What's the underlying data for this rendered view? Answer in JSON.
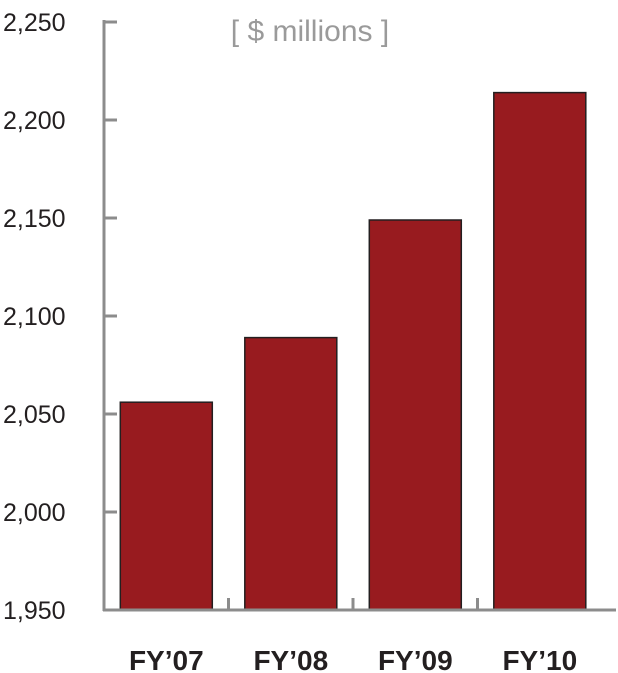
{
  "chart_data": {
    "type": "bar",
    "title": "",
    "unit_label": "[ $ millions ]",
    "categories": [
      "FY’07",
      "FY’08",
      "FY’09",
      "FY’10"
    ],
    "values": [
      2056,
      2089,
      2149,
      2214
    ],
    "ylim": [
      1950,
      2250
    ],
    "yticks": [
      1950,
      2000,
      2050,
      2100,
      2150,
      2200,
      2250
    ],
    "ytick_labels": [
      "1,950",
      "2,000",
      "2,050",
      "2,100",
      "2,150",
      "2,200",
      "2,250"
    ],
    "xlabel": "",
    "ylabel": "",
    "grid": false,
    "legend": "none",
    "colors": {
      "bar": "#981b1f",
      "bar_outline": "#231f20",
      "axis": "#8c8c8c",
      "text": "#231f20",
      "unit_text": "#9a9a9a"
    }
  }
}
